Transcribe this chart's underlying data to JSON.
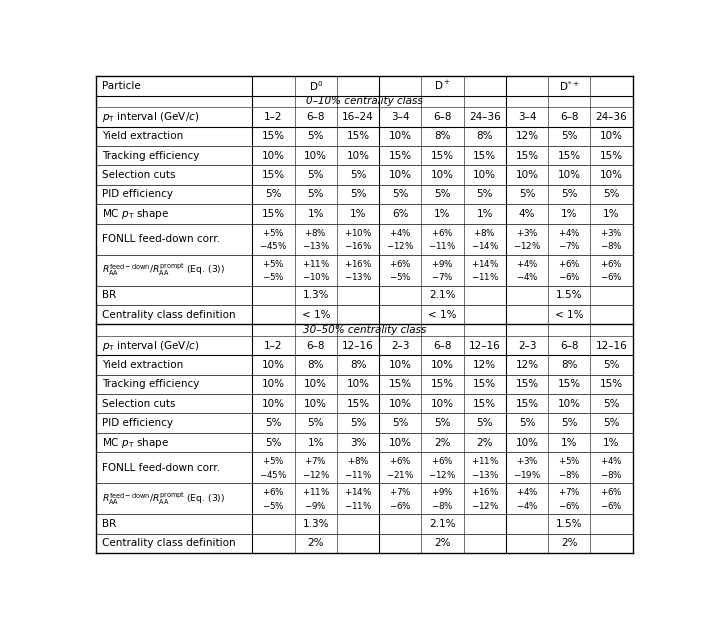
{
  "section1_header": "0–10% centrality class",
  "section2_header": "30–50% centrality class",
  "pt_row1": [
    "1–2",
    "6–8",
    "16–24",
    "3–4",
    "6–8",
    "24–36",
    "3–4",
    "6–8",
    "24–36"
  ],
  "pt_row2": [
    "1–2",
    "6–8",
    "12–16",
    "2–3",
    "6–8",
    "12–16",
    "2–3",
    "6–8",
    "12–16"
  ],
  "fonll_pos_sec1": [
    "+5",
    "+8",
    "+10",
    "+4",
    "+6",
    "+8",
    "+3",
    "+4",
    "+3"
  ],
  "fonll_neg_sec1": [
    "-45",
    "-13",
    "-16",
    "-12",
    "-11",
    "-14",
    "-12",
    "-7",
    "-8"
  ],
  "raa_pos_sec1": [
    "+5",
    "+11",
    "+16",
    "+6",
    "+9",
    "+14",
    "+4",
    "+6",
    "+6"
  ],
  "raa_neg_sec1": [
    "-5",
    "-10",
    "-13",
    "-5",
    "-7",
    "-11",
    "-4",
    "-6",
    "-6"
  ],
  "fonll_pos_sec2": [
    "+5",
    "+7",
    "+8",
    "+6",
    "+6",
    "+11",
    "+3",
    "+5",
    "+4"
  ],
  "fonll_neg_sec2": [
    "-45",
    "-12",
    "-11",
    "-21",
    "-12",
    "-13",
    "-19",
    "-8",
    "-8"
  ],
  "raa_pos_sec2": [
    "+6",
    "+11",
    "+14",
    "+7",
    "+9",
    "+16",
    "+4",
    "+7",
    "+6"
  ],
  "raa_neg_sec2": [
    "-5",
    "-9",
    "-11",
    "-6",
    "-8",
    "-12",
    "-4",
    "-6",
    "-6"
  ],
  "rows_sec1": [
    [
      "Yield extraction",
      "15%",
      "5%",
      "15%",
      "10%",
      "8%",
      "8%",
      "12%",
      "5%",
      "10%"
    ],
    [
      "Tracking efficiency",
      "10%",
      "10%",
      "10%",
      "15%",
      "15%",
      "15%",
      "15%",
      "15%",
      "15%"
    ],
    [
      "Selection cuts",
      "15%",
      "5%",
      "5%",
      "10%",
      "10%",
      "10%",
      "10%",
      "10%",
      "10%"
    ],
    [
      "PID efficiency",
      "5%",
      "5%",
      "5%",
      "5%",
      "5%",
      "5%",
      "5%",
      "5%",
      "5%"
    ],
    [
      "MC pT shape",
      "15%",
      "1%",
      "1%",
      "6%",
      "1%",
      "1%",
      "4%",
      "1%",
      "1%"
    ]
  ],
  "rows_sec2": [
    [
      "Yield extraction",
      "10%",
      "8%",
      "8%",
      "10%",
      "10%",
      "12%",
      "12%",
      "8%",
      "5%"
    ],
    [
      "Tracking efficiency",
      "10%",
      "10%",
      "10%",
      "15%",
      "15%",
      "15%",
      "15%",
      "15%",
      "15%"
    ],
    [
      "Selection cuts",
      "10%",
      "10%",
      "15%",
      "10%",
      "10%",
      "15%",
      "15%",
      "10%",
      "5%"
    ],
    [
      "PID efficiency",
      "5%",
      "5%",
      "5%",
      "5%",
      "5%",
      "5%",
      "5%",
      "5%",
      "5%"
    ],
    [
      "MC pT shape",
      "5%",
      "1%",
      "3%",
      "10%",
      "2%",
      "2%",
      "10%",
      "1%",
      "1%"
    ]
  ]
}
